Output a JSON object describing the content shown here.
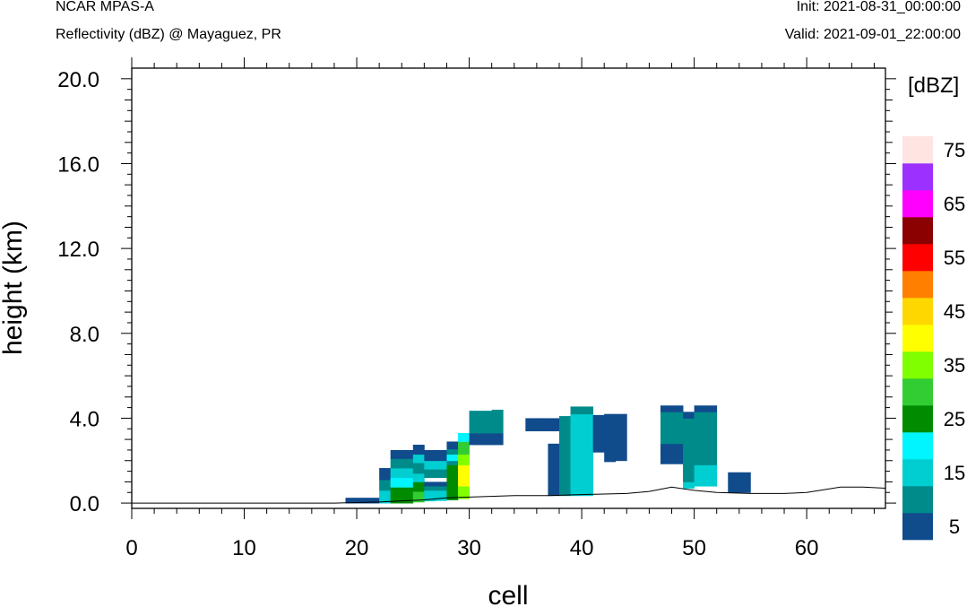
{
  "header": {
    "left_top": "NCAR MPAS-A",
    "left_bottom": "Reflectivity (dBZ) @ Mayaguez, PR",
    "right_top": "Init: 2021-08-31_00:00:00",
    "right_bottom": "Valid: 2021-09-01_22:00:00"
  },
  "chart_data": {
    "type": "heatmap",
    "xlabel": "cell",
    "ylabel": "height (km)",
    "xlim": [
      0,
      67
    ],
    "ylim": [
      -0.25,
      20.5
    ],
    "x_ticks": [
      "0",
      "10",
      "20",
      "30",
      "40",
      "50",
      "60"
    ],
    "x_tick_values": [
      0,
      10,
      20,
      30,
      40,
      50,
      60
    ],
    "y_ticks": [
      "0.0",
      "4.0",
      "8.0",
      "12.0",
      "16.0",
      "20.0"
    ],
    "y_tick_values": [
      0,
      4,
      8,
      12,
      16,
      20
    ],
    "colorbar": {
      "title": "[dBZ]",
      "labels": [
        "5",
        "15",
        "25",
        "35",
        "45",
        "55",
        "65",
        "75"
      ],
      "label_values": [
        5,
        15,
        25,
        35,
        45,
        55,
        65,
        75
      ],
      "bins": [
        {
          "value": 5,
          "color": "#104b8c"
        },
        {
          "value": 10,
          "color": "#008b8b"
        },
        {
          "value": 15,
          "color": "#00ced1"
        },
        {
          "value": 20,
          "color": "#00f5ff"
        },
        {
          "value": 25,
          "color": "#008b00"
        },
        {
          "value": 30,
          "color": "#32cd32"
        },
        {
          "value": 35,
          "color": "#7fff00"
        },
        {
          "value": 40,
          "color": "#ffff00"
        },
        {
          "value": 45,
          "color": "#ffd700"
        },
        {
          "value": 50,
          "color": "#ff7f00"
        },
        {
          "value": 55,
          "color": "#ff0000"
        },
        {
          "value": 60,
          "color": "#8b0000"
        },
        {
          "value": 65,
          "color": "#ff00ff"
        },
        {
          "value": 70,
          "color": "#9b30ff"
        },
        {
          "value": 75,
          "color": "#ffe4e1"
        }
      ]
    },
    "terrain": [
      [
        0,
        0
      ],
      [
        18,
        0
      ],
      [
        22,
        0.05
      ],
      [
        26,
        0.15
      ],
      [
        28,
        0.25
      ],
      [
        31,
        0.3
      ],
      [
        34,
        0.35
      ],
      [
        37,
        0.35
      ],
      [
        40,
        0.4
      ],
      [
        44,
        0.45
      ],
      [
        46,
        0.55
      ],
      [
        48,
        0.75
      ],
      [
        50,
        0.6
      ],
      [
        52,
        0.5
      ],
      [
        55,
        0.45
      ],
      [
        58,
        0.45
      ],
      [
        60,
        0.5
      ],
      [
        63,
        0.75
      ],
      [
        65,
        0.75
      ],
      [
        67,
        0.7
      ]
    ],
    "cells": [
      [
        {
          "z0": 0,
          "z1": 0.25,
          "dbz": 5
        }
      ],
      [
        {
          "z0": 0,
          "z1": 0.25,
          "dbz": 5
        }
      ],
      [
        {
          "z0": 0,
          "z1": 0.25,
          "dbz": 5
        }
      ],
      [
        {
          "z0": 0,
          "z1": 0.6,
          "dbz": 15
        },
        {
          "z0": 0.6,
          "z1": 1.1,
          "dbz": 10
        },
        {
          "z0": 1.1,
          "z1": 1.65,
          "dbz": 5
        }
      ],
      [
        {
          "z0": 0,
          "z1": 0.75,
          "dbz": 25
        },
        {
          "z0": 0.75,
          "z1": 1.2,
          "dbz": 20
        },
        {
          "z0": 1.2,
          "z1": 1.65,
          "dbz": 15
        },
        {
          "z0": 1.65,
          "z1": 2.1,
          "dbz": 10
        },
        {
          "z0": 2.1,
          "z1": 2.5,
          "dbz": 5
        }
      ],
      [
        {
          "z0": 0,
          "z1": 0.75,
          "dbz": 25
        },
        {
          "z0": 0.75,
          "z1": 1.2,
          "dbz": 20
        },
        {
          "z0": 1.2,
          "z1": 1.65,
          "dbz": 15
        },
        {
          "z0": 1.65,
          "z1": 2.1,
          "dbz": 10
        },
        {
          "z0": 2.1,
          "z1": 2.5,
          "dbz": 5
        }
      ],
      [
        {
          "z0": 0.05,
          "z1": 0.55,
          "dbz": 30
        },
        {
          "z0": 0.55,
          "z1": 1.0,
          "dbz": 25
        },
        {
          "z0": 1.0,
          "z1": 1.4,
          "dbz": 15
        },
        {
          "z0": 1.4,
          "z1": 1.9,
          "dbz": 10
        },
        {
          "z0": 1.9,
          "z1": 2.3,
          "dbz": 15
        },
        {
          "z0": 2.3,
          "z1": 2.75,
          "dbz": 5
        }
      ],
      [
        {
          "z0": 0.1,
          "z1": 0.6,
          "dbz": 15
        },
        {
          "z0": 0.6,
          "z1": 0.8,
          "dbz": 10
        },
        {
          "z0": 0.8,
          "z1": 1.0,
          "dbz": 5
        },
        {
          "z0": 1.2,
          "z1": 1.6,
          "dbz": 10
        },
        {
          "z0": 1.6,
          "z1": 2.0,
          "dbz": 15
        },
        {
          "z0": 2.0,
          "z1": 2.5,
          "dbz": 5
        }
      ],
      [
        {
          "z0": 0.12,
          "z1": 0.6,
          "dbz": 15
        },
        {
          "z0": 0.6,
          "z1": 0.8,
          "dbz": 10
        },
        {
          "z0": 0.8,
          "z1": 1.0,
          "dbz": 5
        },
        {
          "z0": 1.2,
          "z1": 1.6,
          "dbz": 10
        },
        {
          "z0": 1.6,
          "z1": 2.0,
          "dbz": 15
        },
        {
          "z0": 2.0,
          "z1": 2.5,
          "dbz": 5
        }
      ],
      [
        {
          "z0": 0.15,
          "z1": 1.8,
          "dbz": 25
        },
        {
          "z0": 1.8,
          "z1": 2.0,
          "dbz": 10
        },
        {
          "z0": 2.0,
          "z1": 2.3,
          "dbz": 20
        },
        {
          "z0": 2.3,
          "z1": 2.55,
          "dbz": 10
        },
        {
          "z0": 2.55,
          "z1": 2.9,
          "dbz": 5
        }
      ],
      [
        {
          "z0": 0.2,
          "z1": 0.8,
          "dbz": 35
        },
        {
          "z0": 0.8,
          "z1": 1.8,
          "dbz": 40
        },
        {
          "z0": 1.8,
          "z1": 2.3,
          "dbz": 35
        },
        {
          "z0": 2.3,
          "z1": 2.9,
          "dbz": 30
        },
        {
          "z0": 2.9,
          "z1": 3.3,
          "dbz": 20
        }
      ],
      [
        {
          "z0": 2.75,
          "z1": 3.3,
          "dbz": 5
        },
        {
          "z0": 3.3,
          "z1": 4.35,
          "dbz": 10
        }
      ],
      [
        {
          "z0": 2.75,
          "z1": 3.3,
          "dbz": 5
        },
        {
          "z0": 3.3,
          "z1": 4.35,
          "dbz": 10
        }
      ],
      [
        {
          "z0": 2.75,
          "z1": 3.3,
          "dbz": 5
        },
        {
          "z0": 3.3,
          "z1": 4.4,
          "dbz": 10
        }
      ],
      [],
      [],
      [
        {
          "z0": 3.4,
          "z1": 4.0,
          "dbz": 5
        }
      ],
      [
        {
          "z0": 3.4,
          "z1": 4.0,
          "dbz": 5
        }
      ],
      [
        {
          "z0": 0.35,
          "z1": 2.8,
          "dbz": 5
        },
        {
          "z0": 3.4,
          "z1": 4.0,
          "dbz": 5
        }
      ],
      [
        {
          "z0": 0.35,
          "z1": 4.1,
          "dbz": 10
        }
      ],
      [
        {
          "z0": 0.35,
          "z1": 4.2,
          "dbz": 15
        },
        {
          "z0": 4.2,
          "z1": 4.55,
          "dbz": 10
        }
      ],
      [
        {
          "z0": 0.35,
          "z1": 4.2,
          "dbz": 15
        },
        {
          "z0": 4.2,
          "z1": 4.55,
          "dbz": 10
        }
      ],
      [
        {
          "z0": 2.4,
          "z1": 4.15,
          "dbz": 5
        }
      ],
      [
        {
          "z0": 1.95,
          "z1": 4.2,
          "dbz": 5
        }
      ],
      [
        {
          "z0": 2.0,
          "z1": 4.2,
          "dbz": 5
        }
      ],
      [],
      [],
      [],
      [
        {
          "z0": 1.85,
          "z1": 2.8,
          "dbz": 5
        },
        {
          "z0": 2.8,
          "z1": 4.3,
          "dbz": 10
        },
        {
          "z0": 4.3,
          "z1": 4.6,
          "dbz": 5
        }
      ],
      [
        {
          "z0": 1.85,
          "z1": 2.8,
          "dbz": 5
        },
        {
          "z0": 2.8,
          "z1": 4.3,
          "dbz": 10
        },
        {
          "z0": 4.3,
          "z1": 4.6,
          "dbz": 5
        }
      ],
      [
        {
          "z0": 0.7,
          "z1": 1.0,
          "dbz": 15
        },
        {
          "z0": 1.0,
          "z1": 4.0,
          "dbz": 10
        },
        {
          "z0": 4.0,
          "z1": 4.3,
          "dbz": 5
        }
      ],
      [
        {
          "z0": 0.8,
          "z1": 1.8,
          "dbz": 15
        },
        {
          "z0": 1.8,
          "z1": 4.3,
          "dbz": 10
        },
        {
          "z0": 4.3,
          "z1": 4.6,
          "dbz": 5
        }
      ],
      [
        {
          "z0": 0.8,
          "z1": 1.8,
          "dbz": 15
        },
        {
          "z0": 1.8,
          "z1": 4.3,
          "dbz": 10
        },
        {
          "z0": 4.3,
          "z1": 4.6,
          "dbz": 5
        }
      ],
      [],
      [
        {
          "z0": 0.5,
          "z1": 1.45,
          "dbz": 5
        }
      ],
      [
        {
          "z0": 0.5,
          "z1": 1.45,
          "dbz": 5
        }
      ]
    ],
    "cells_x_start": 19
  }
}
